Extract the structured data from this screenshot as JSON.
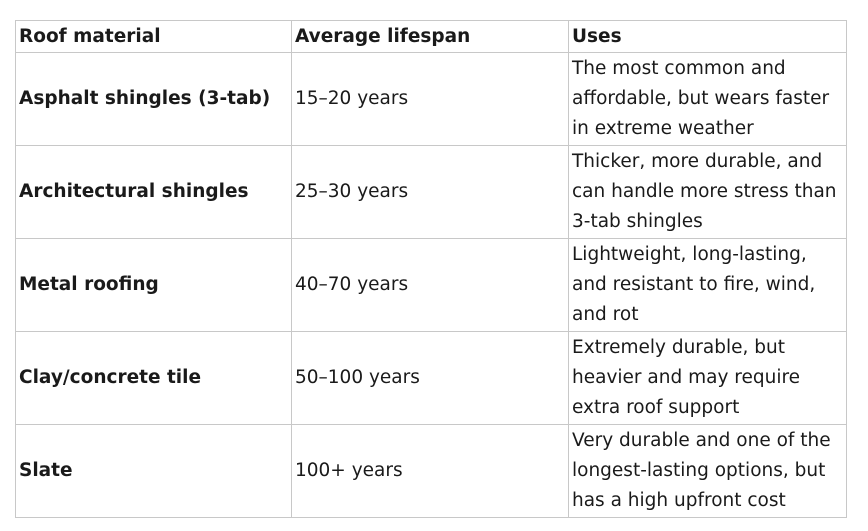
{
  "table": {
    "header": [
      "Roof material",
      "Average lifespan",
      "Uses"
    ],
    "rows": [
      [
        "Asphalt shingles (3-tab)",
        "15–20 years",
        "The most common and affordable, but wears faster in extreme weather"
      ],
      [
        "Architectural shingles",
        "25–30 years",
        "Thicker, more durable, and can handle more stress than 3-tab shingles"
      ],
      [
        "Metal roofing",
        "40–70 years",
        "Lightweight, long-lasting, and resistant to fire, wind, and rot"
      ],
      [
        "Clay/concrete tile",
        "50–100 years",
        "Extremely durable, but heavier and may require extra roof support"
      ],
      [
        "Slate",
        "100+ years",
        "Very durable and one of the longest-lasting options, but has a high upfront cost"
      ]
    ]
  }
}
